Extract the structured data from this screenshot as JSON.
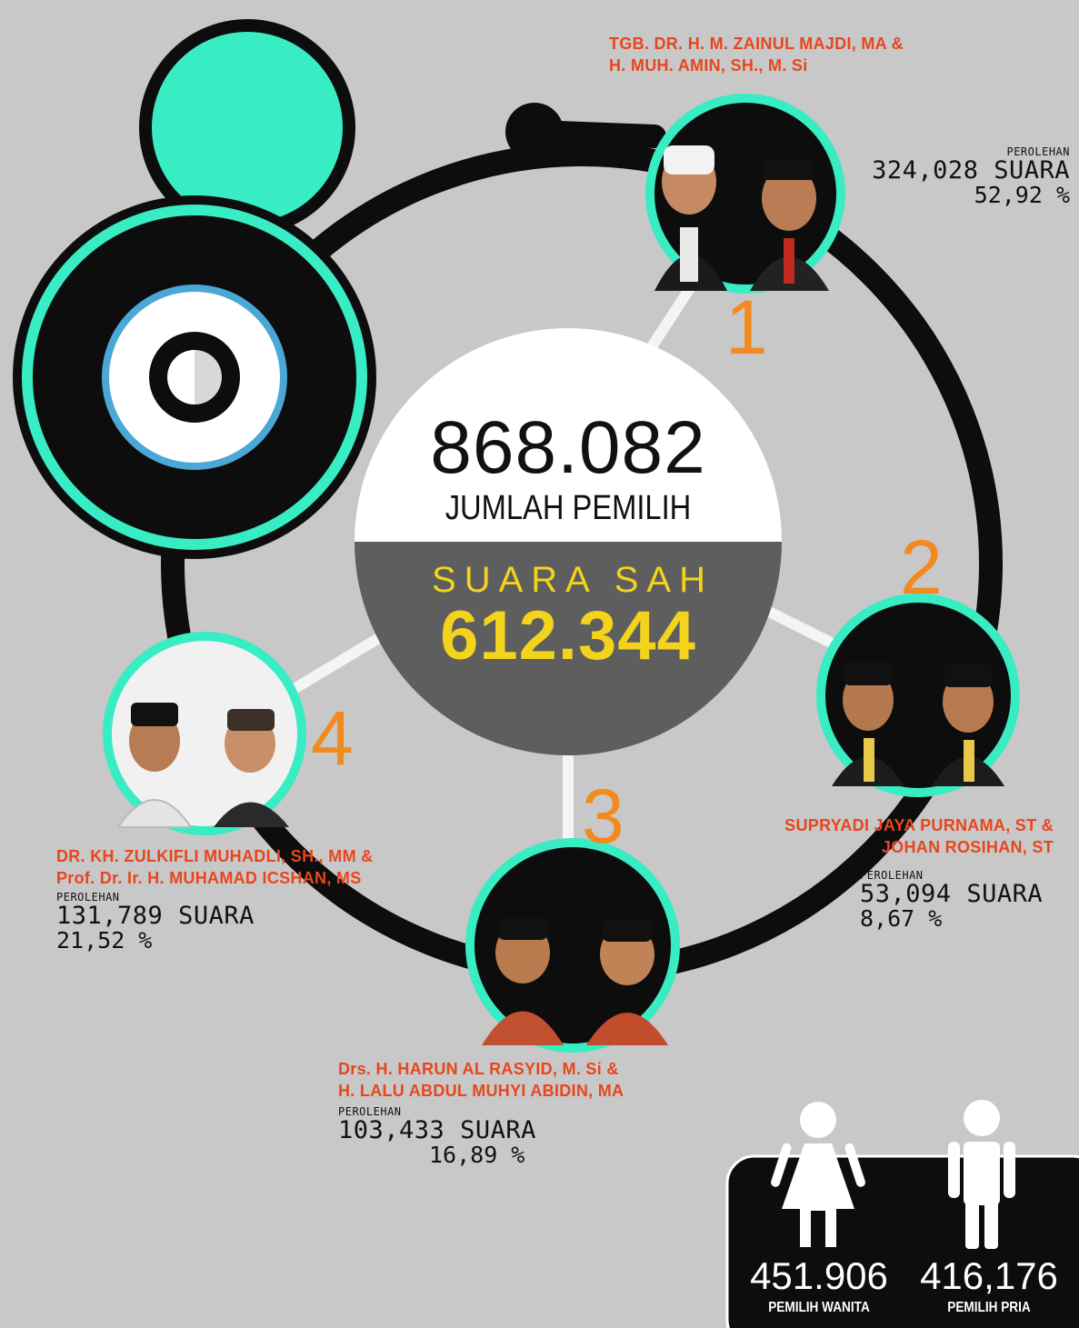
{
  "center": {
    "total_voters": "868.082",
    "total_voters_label": "JUMLAH PEMILIH",
    "valid_votes_label": "SUARA SAH",
    "valid_votes": "612.344"
  },
  "candidates": [
    {
      "number": "1",
      "name_line1": "TGB. DR. H. M. ZAINUL MAJDI, MA &",
      "name_line2": "H. MUH. AMIN, SH., M. Si",
      "perolehan_label": "PEROLEHAN",
      "votes": "324,028",
      "votes_unit": "SUARA",
      "percent": "52,92 %"
    },
    {
      "number": "2",
      "name_line1": "SUPRYADI JAYA PURNAMA, ST &",
      "name_line2": "JOHAN ROSIHAN, ST",
      "perolehan_label": "PEROLEHAN",
      "votes": "53,094",
      "votes_unit": "SUARA",
      "percent": "8,67 %"
    },
    {
      "number": "3",
      "name_line1": "Drs. H. HARUN AL RASYID, M. Si &",
      "name_line2": "H. LALU ABDUL MUHYI ABIDIN, MA",
      "perolehan_label": "PEROLEHAN",
      "votes": "103,433",
      "votes_unit": "SUARA",
      "percent": "16,89 %"
    },
    {
      "number": "4",
      "name_line1": "DR. KH. ZULKIFLI MUHADLI, SH., MM &",
      "name_line2": "Prof. Dr. Ir. H. MUHAMAD ICSHAN, MS",
      "perolehan_label": "PEROLEHAN",
      "votes": "131,789",
      "votes_unit": "SUARA",
      "percent": "21,52 %"
    }
  ],
  "gender": {
    "female_value": "451.906",
    "female_label": "PEMILIH WANITA",
    "male_value": "416,176",
    "male_label": "PEMILIH PRIA"
  },
  "colors": {
    "background": "#c8c8c8",
    "accent_teal": "#38ecc4",
    "name_orange": "#e8461c",
    "number_orange": "#f28a1e",
    "valid_yellow": "#f3d31c",
    "dark": "#0d0d0d",
    "center_gray": "#5e5e5e"
  },
  "icons": [
    "logo-ring-icon",
    "female-voter-icon",
    "male-voter-icon",
    "candidate-photo-icon"
  ]
}
